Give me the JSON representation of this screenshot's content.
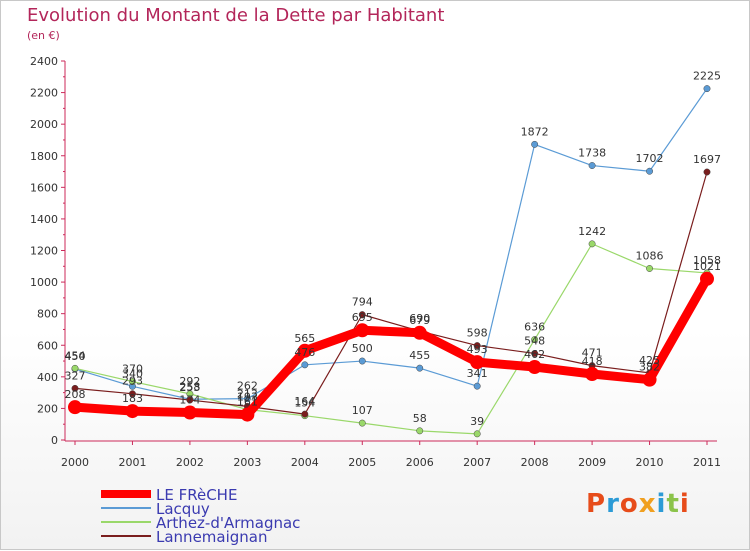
{
  "title": "Evolution du Montant de la Dette par Habitant",
  "subtitle": "(en €)",
  "logo": {
    "text": "Proxiti",
    "colors": [
      "#e74c1a",
      "#2c9bd6",
      "#e74c1a",
      "#f0a020",
      "#2c9bd6",
      "#8bc34a",
      "#e74c1a"
    ]
  },
  "chart_data": {
    "type": "line",
    "x": [
      "2000",
      "2001",
      "2002",
      "2003",
      "2004",
      "2005",
      "2006",
      "2007",
      "2008",
      "2009",
      "2010",
      "2011"
    ],
    "ylim": [
      0,
      2400
    ],
    "yticks": [
      0,
      200,
      400,
      600,
      800,
      1000,
      1200,
      1400,
      1600,
      1800,
      2000,
      2200,
      2400
    ],
    "grid": false,
    "legend_position": "bottom-left",
    "series": [
      {
        "name": "Lacquy",
        "color": "#5b9bd5",
        "width": 1.2,
        "values": [
          450,
          340,
          258,
          262,
          476,
          500,
          455,
          341,
          1872,
          1738,
          1702,
          2225
        ]
      },
      {
        "name": "Arthez-d'Armagnac",
        "color": "#9ad86a",
        "width": 1.2,
        "values": [
          454,
          370,
          292,
          193,
          154,
          107,
          58,
          39,
          636,
          1242,
          1086,
          1058
        ]
      },
      {
        "name": "Lannemaignan",
        "color": "#7a1d1d",
        "width": 1.2,
        "values": [
          327,
          293,
          253,
          213,
          164,
          794,
          690,
          598,
          548,
          471,
          425,
          1697
        ]
      },
      {
        "name": "LE FRèCHE",
        "color": "#ff0000",
        "width": 9,
        "values": [
          208,
          183,
          174,
          161,
          565,
          695,
          679,
          493,
          462,
          418,
          382,
          1021
        ]
      }
    ]
  }
}
